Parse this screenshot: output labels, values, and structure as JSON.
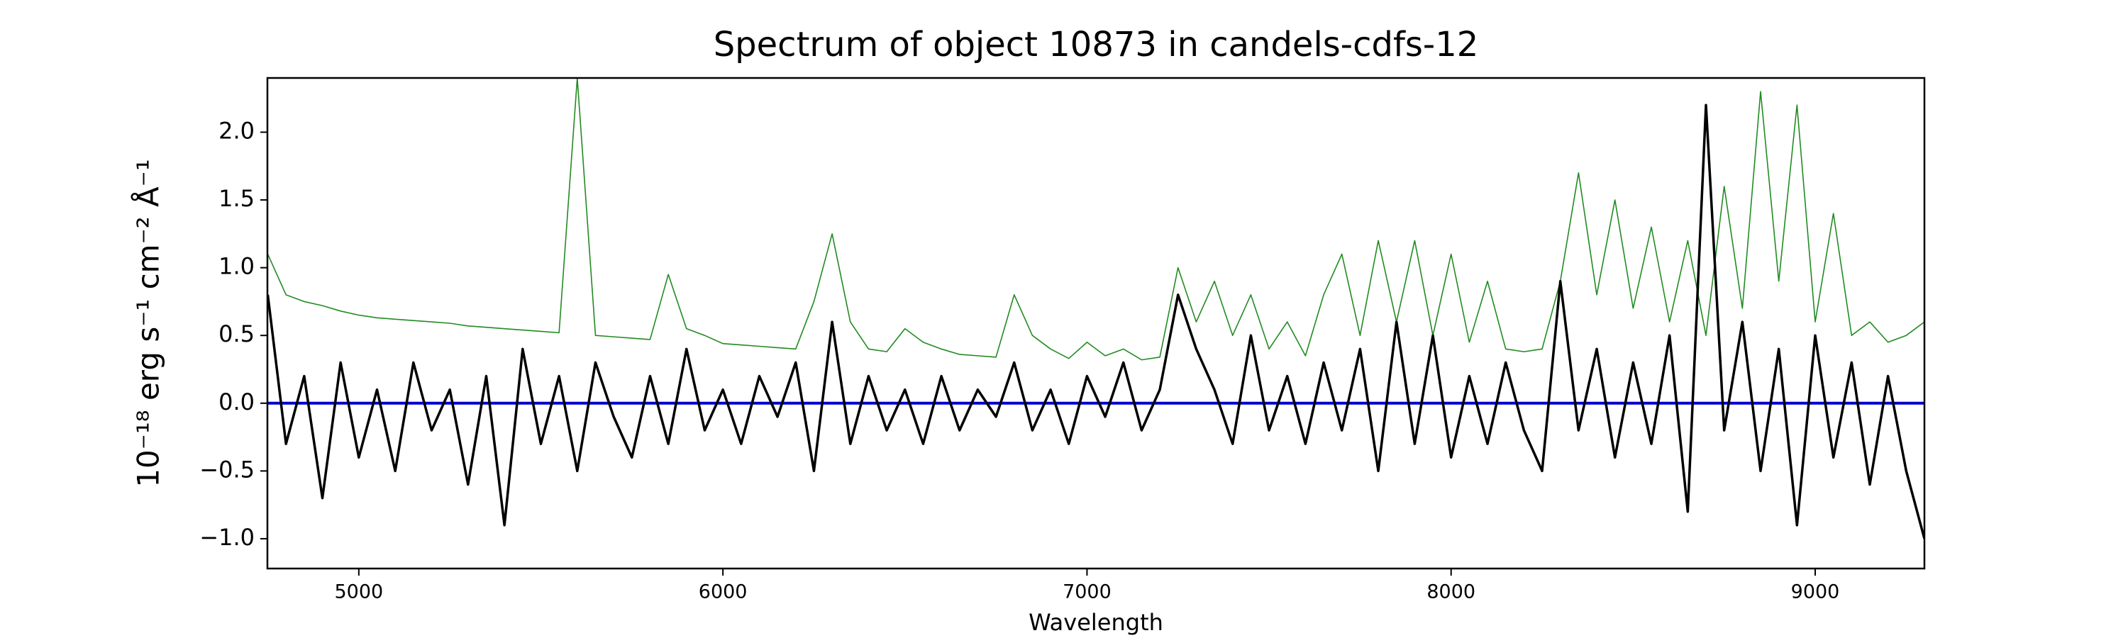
{
  "chart_data": {
    "type": "line",
    "title": "Spectrum of object 10873 in candels-cdfs-12",
    "xlabel": "Wavelength",
    "ylabel": "10⁻¹⁸ erg s⁻¹ cm⁻² Å⁻¹",
    "x": [
      4750,
      4800,
      4850,
      4900,
      4950,
      5000,
      5050,
      5100,
      5150,
      5200,
      5250,
      5300,
      5350,
      5400,
      5450,
      5500,
      5550,
      5600,
      5650,
      5700,
      5750,
      5800,
      5850,
      5900,
      5950,
      6000,
      6050,
      6100,
      6150,
      6200,
      6250,
      6300,
      6350,
      6400,
      6450,
      6500,
      6550,
      6600,
      6650,
      6700,
      6750,
      6800,
      6850,
      6900,
      6950,
      7000,
      7050,
      7100,
      7150,
      7200,
      7250,
      7300,
      7350,
      7400,
      7450,
      7500,
      7550,
      7600,
      7650,
      7700,
      7750,
      7800,
      7850,
      7900,
      7950,
      8000,
      8050,
      8100,
      8150,
      8200,
      8250,
      8300,
      8350,
      8400,
      8450,
      8500,
      8550,
      8600,
      8650,
      8700,
      8750,
      8800,
      8850,
      8900,
      8950,
      9000,
      9050,
      9100,
      9150,
      9200,
      9250,
      9300
    ],
    "series": [
      {
        "color": "#228b22",
        "values": [
          1.1,
          0.8,
          0.75,
          0.72,
          0.68,
          0.65,
          0.63,
          0.62,
          0.61,
          0.6,
          0.59,
          0.57,
          0.56,
          0.55,
          0.54,
          0.53,
          0.52,
          2.4,
          0.5,
          0.49,
          0.48,
          0.47,
          0.95,
          0.55,
          0.5,
          0.44,
          0.43,
          0.42,
          0.41,
          0.4,
          0.75,
          1.25,
          0.6,
          0.4,
          0.38,
          0.55,
          0.45,
          0.4,
          0.36,
          0.35,
          0.34,
          0.8,
          0.5,
          0.4,
          0.33,
          0.45,
          0.35,
          0.4,
          0.32,
          0.34,
          1.0,
          0.6,
          0.9,
          0.5,
          0.8,
          0.4,
          0.6,
          0.35,
          0.8,
          1.1,
          0.5,
          1.2,
          0.6,
          1.2,
          0.5,
          1.1,
          0.45,
          0.9,
          0.4,
          0.38,
          0.4,
          0.9,
          1.7,
          0.8,
          1.5,
          0.7,
          1.3,
          0.6,
          1.2,
          0.5,
          1.6,
          0.7,
          2.3,
          0.9,
          2.2,
          0.6,
          1.4,
          0.5,
          0.6,
          0.45,
          0.5,
          0.6
        ],
        "width": 1.6
      },
      {
        "color": "#0000cc",
        "values": [
          0,
          0,
          0,
          0,
          0,
          0,
          0,
          0,
          0,
          0,
          0,
          0,
          0,
          0,
          0,
          0,
          0,
          0,
          0,
          0,
          0,
          0,
          0,
          0,
          0,
          0,
          0,
          0,
          0,
          0,
          0,
          0,
          0,
          0,
          0,
          0,
          0,
          0,
          0,
          0,
          0,
          0,
          0,
          0,
          0,
          0,
          0,
          0,
          0,
          0,
          0,
          0,
          0,
          0,
          0,
          0,
          0,
          0,
          0,
          0,
          0,
          0,
          0,
          0,
          0,
          0,
          0,
          0,
          0,
          0,
          0,
          0,
          0,
          0,
          0,
          0,
          0,
          0,
          0,
          0,
          0,
          0,
          0,
          0,
          0,
          0,
          0,
          0,
          0,
          0,
          0,
          0
        ],
        "width": 4
      },
      {
        "color": "#000000",
        "values": [
          0.8,
          -0.3,
          0.2,
          -0.7,
          0.3,
          -0.4,
          0.1,
          -0.5,
          0.3,
          -0.2,
          0.1,
          -0.6,
          0.2,
          -0.9,
          0.4,
          -0.3,
          0.2,
          -0.5,
          0.3,
          -0.1,
          -0.4,
          0.2,
          -0.3,
          0.4,
          -0.2,
          0.1,
          -0.3,
          0.2,
          -0.1,
          0.3,
          -0.5,
          0.6,
          -0.3,
          0.2,
          -0.2,
          0.1,
          -0.3,
          0.2,
          -0.2,
          0.1,
          -0.1,
          0.3,
          -0.2,
          0.1,
          -0.3,
          0.2,
          -0.1,
          0.3,
          -0.2,
          0.1,
          0.8,
          0.4,
          0.1,
          -0.3,
          0.5,
          -0.2,
          0.2,
          -0.3,
          0.3,
          -0.2,
          0.4,
          -0.5,
          0.6,
          -0.3,
          0.5,
          -0.4,
          0.2,
          -0.3,
          0.3,
          -0.2,
          -0.5,
          0.9,
          -0.2,
          0.4,
          -0.4,
          0.3,
          -0.3,
          0.5,
          -0.8,
          2.2,
          -0.2,
          0.6,
          -0.5,
          0.4,
          -0.9,
          0.5,
          -0.4,
          0.3,
          -0.6,
          0.2,
          -0.5,
          -1.0
        ],
        "width": 3.5
      }
    ],
    "xlim": [
      4749,
      9300
    ],
    "ylim": [
      -1.22,
      2.4
    ],
    "xticks": [
      5000,
      6000,
      7000,
      8000,
      9000
    ],
    "yticks": [
      {
        "value": -1.0,
        "label": "−1.0"
      },
      {
        "value": -0.5,
        "label": "−0.5"
      },
      {
        "value": 0.0,
        "label": "0.0"
      },
      {
        "value": 0.5,
        "label": "0.5"
      },
      {
        "value": 1.0,
        "label": "1.0"
      },
      {
        "value": 1.5,
        "label": "1.5"
      },
      {
        "value": 2.0,
        "label": "2.0"
      }
    ],
    "grid": false
  }
}
